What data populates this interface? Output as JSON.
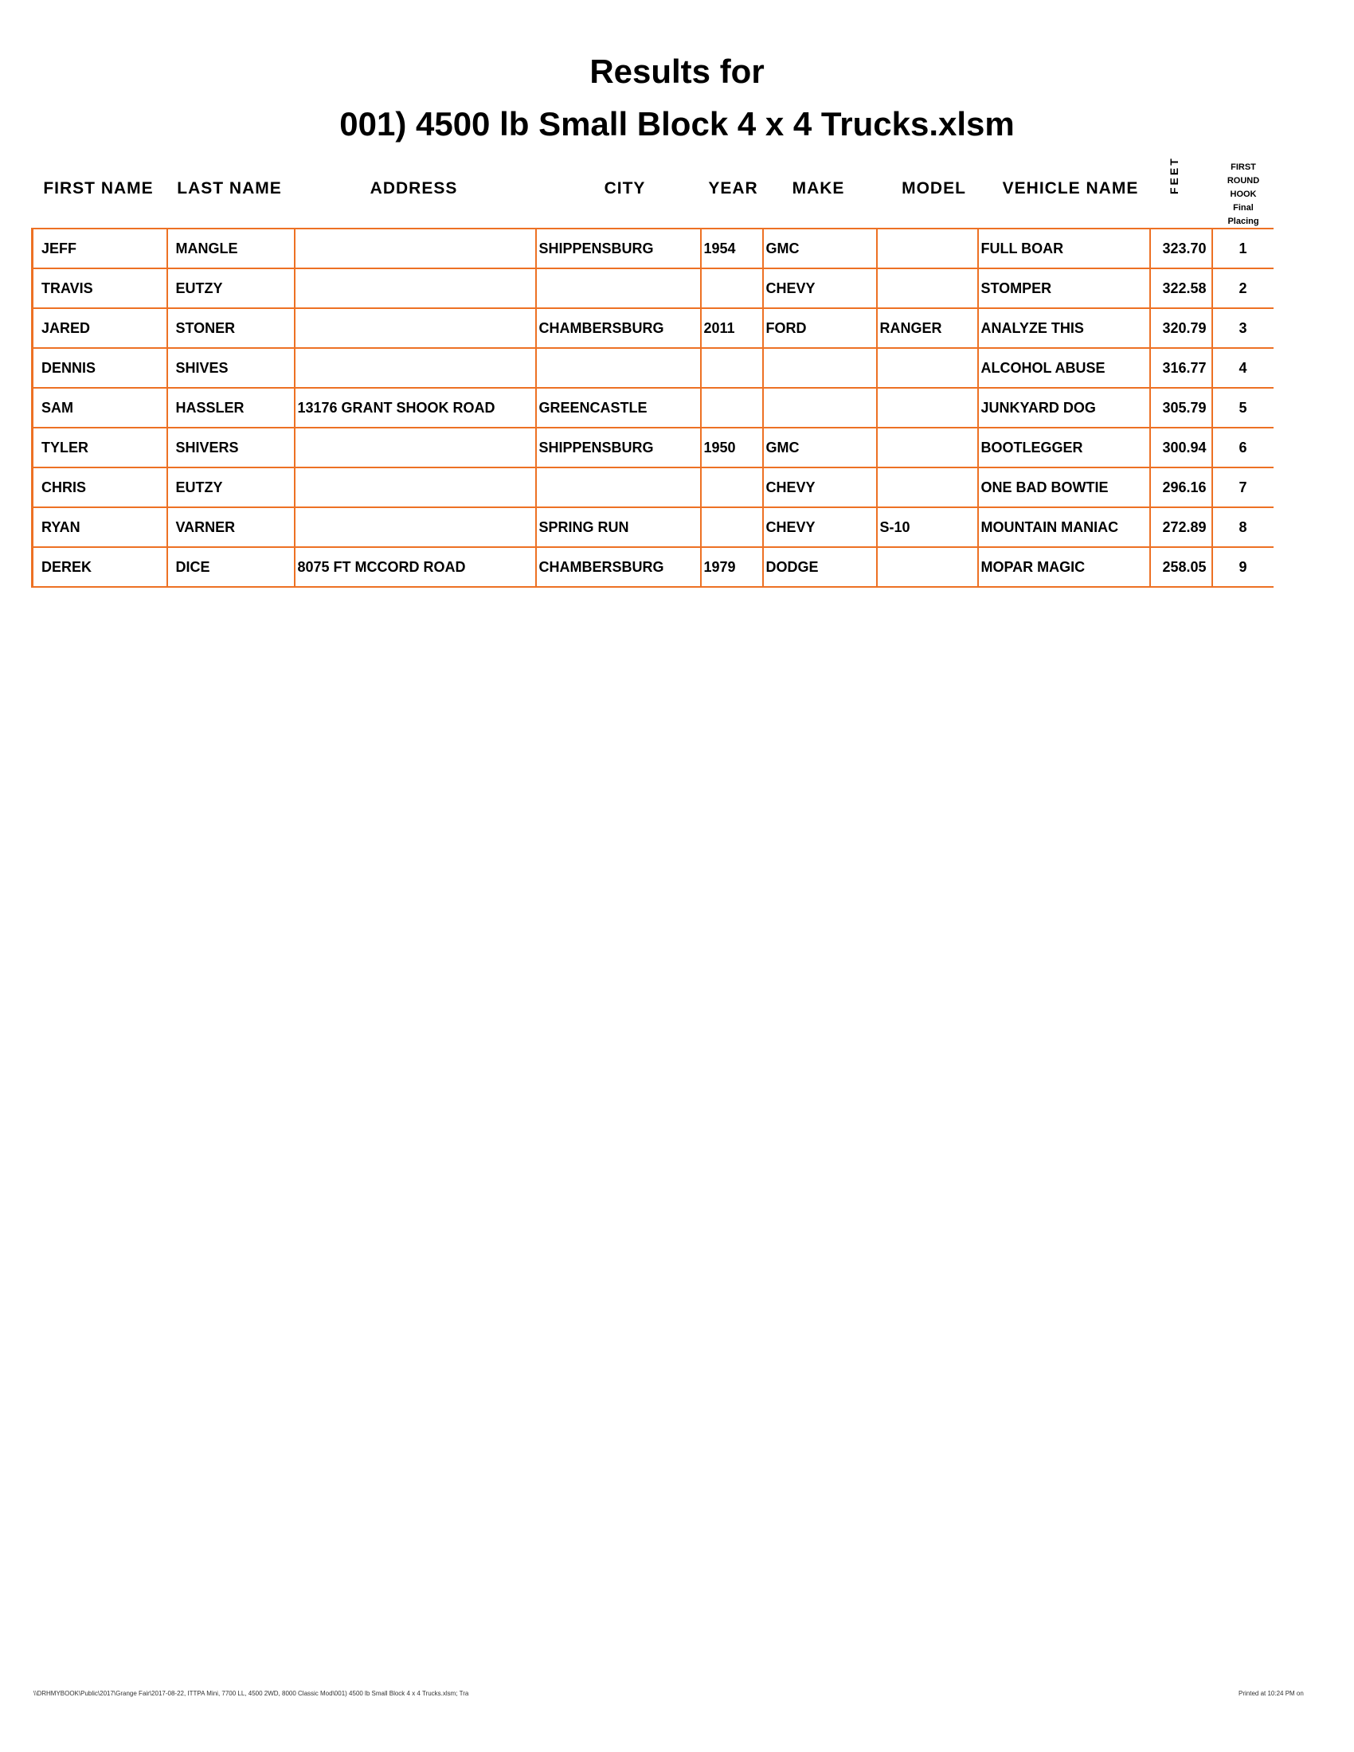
{
  "title_line1": "Results for",
  "title_line2": "001) 4500 lb Small Block 4 x 4 Trucks.xlsm",
  "headers": {
    "first": "FIRST NAME",
    "last": "LAST NAME",
    "address": "ADDRESS",
    "city": "CITY",
    "year": "YEAR",
    "make": "MAKE",
    "model": "MODEL",
    "vehicle": "VEHICLE NAME",
    "feet": "FEET",
    "placing1": "FIRST",
    "placing2": "ROUND",
    "placing3": "HOOK",
    "placing4": "Final",
    "placing5": "Placing"
  },
  "rows": [
    [
      "JEFF",
      "MANGLE",
      "",
      "SHIPPENSBURG",
      "1954",
      "GMC",
      "",
      "FULL BOAR",
      "323.70",
      "1"
    ],
    [
      "TRAVIS",
      "EUTZY",
      "",
      "",
      "",
      "CHEVY",
      "",
      "STOMPER",
      "322.58",
      "2"
    ],
    [
      "JARED",
      "STONER",
      "",
      "CHAMBERSBURG",
      "2011",
      "FORD",
      "RANGER",
      "ANALYZE THIS",
      "320.79",
      "3"
    ],
    [
      "DENNIS",
      "SHIVES",
      "",
      "",
      "",
      "",
      "",
      "ALCOHOL ABUSE",
      "316.77",
      "4"
    ],
    [
      "SAM",
      "HASSLER",
      "13176 GRANT SHOOK ROAD",
      "GREENCASTLE",
      "",
      "",
      "",
      "JUNKYARD DOG",
      "305.79",
      "5"
    ],
    [
      "TYLER",
      "SHIVERS",
      "",
      "SHIPPENSBURG",
      "1950",
      "GMC",
      "",
      "BOOTLEGGER",
      "300.94",
      "6"
    ],
    [
      "CHRIS",
      "EUTZY",
      "",
      "",
      "",
      "CHEVY",
      "",
      "ONE BAD BOWTIE",
      "296.16",
      "7"
    ],
    [
      "RYAN",
      "VARNER",
      "",
      "SPRING RUN",
      "",
      "CHEVY",
      "S-10",
      "MOUNTAIN MANIAC",
      "272.89",
      "8"
    ],
    [
      "DEREK",
      "DICE",
      "8075 FT MCCORD ROAD",
      "CHAMBERSBURG",
      "1979",
      "DODGE",
      "",
      "MOPAR MAGIC",
      "258.05",
      "9"
    ]
  ],
  "footer_left": "\\\\DRHMYBOOK\\Public\\2017\\Grange Fair\\2017-08-22, ITTPA Mini, 7700 LL, 4500 2WD, 8000 Classic Mod\\001) 4500 lb Small Block 4 x 4 Trucks.xlsm; Tra",
  "footer_right": "Printed at 10:24 PM on",
  "border_color": "#ed7124"
}
